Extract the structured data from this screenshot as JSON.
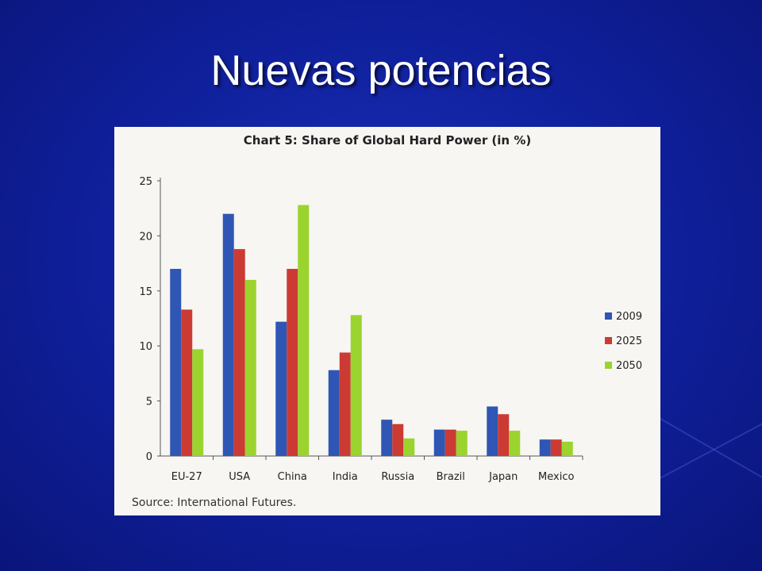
{
  "slide": {
    "title": "Nuevas potencias"
  },
  "chart_data": {
    "type": "bar",
    "title": "Chart 5: Share of Global Hard Power (in %)",
    "source": "Source: International Futures.",
    "categories": [
      "EU-27",
      "USA",
      "China",
      "India",
      "Russia",
      "Brazil",
      "Japan",
      "Mexico"
    ],
    "series": [
      {
        "name": "2009",
        "color": "#2f56b5",
        "values": [
          17,
          22,
          12.2,
          7.8,
          3.3,
          2.4,
          4.5,
          1.5
        ]
      },
      {
        "name": "2025",
        "color": "#cc3b33",
        "values": [
          13.3,
          18.8,
          17,
          9.4,
          2.9,
          2.4,
          3.8,
          1.5
        ]
      },
      {
        "name": "2050",
        "color": "#9bd32f",
        "values": [
          9.7,
          16,
          22.8,
          12.8,
          1.6,
          2.3,
          2.3,
          1.3
        ]
      }
    ],
    "yticks": [
      0,
      5,
      10,
      15,
      20,
      25
    ],
    "ylim": [
      0,
      25
    ],
    "grid": false,
    "legend_position": "right"
  }
}
